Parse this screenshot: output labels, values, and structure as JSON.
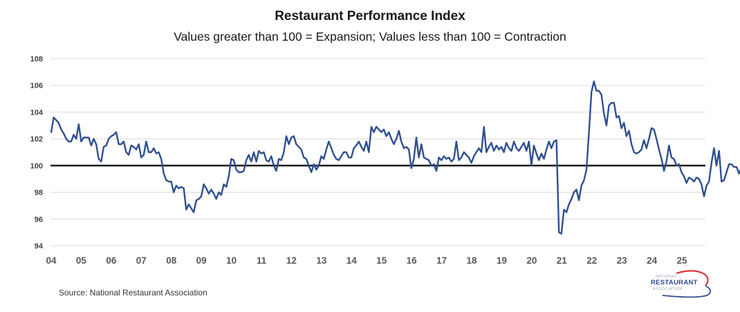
{
  "chart_data": {
    "type": "line",
    "title": "Restaurant Performance Index",
    "subtitle": "Values greater than 100 = Expansion; Values less than 100 = Contraction",
    "xlabel": "",
    "ylabel": "",
    "ylim": [
      94,
      108
    ],
    "yticks": [
      "108",
      "106",
      "104",
      "102",
      "100",
      "98",
      "96",
      "94"
    ],
    "ytick_values": [
      108,
      106,
      104,
      102,
      100,
      98,
      96,
      94
    ],
    "xticks": [
      "04",
      "05",
      "06",
      "07",
      "08",
      "09",
      "10",
      "11",
      "12",
      "13",
      "14",
      "15",
      "16",
      "17",
      "18",
      "19",
      "20",
      "21",
      "22",
      "23",
      "24",
      "25"
    ],
    "grid": true,
    "reference_line": 100,
    "legend": "none",
    "x_start": "2004-01",
    "frequency": "monthly",
    "series": [
      {
        "name": "Restaurant Performance Index",
        "color": "#2f4f8f",
        "values": [
          102.5,
          103.6,
          103.4,
          103.2,
          102.7,
          102.4,
          102.0,
          101.8,
          101.8,
          102.3,
          102.0,
          103.1,
          101.8,
          102.1,
          102.1,
          102.1,
          101.5,
          102.0,
          101.6,
          100.5,
          100.3,
          101.4,
          101.5,
          102.0,
          102.2,
          102.3,
          102.5,
          101.6,
          101.6,
          101.8,
          101.0,
          100.8,
          101.5,
          101.4,
          101.2,
          101.6,
          100.6,
          100.8,
          101.8,
          101.0,
          101.0,
          101.3,
          100.9,
          101.0,
          100.5,
          99.4,
          98.9,
          98.8,
          98.8,
          98.0,
          98.5,
          98.3,
          98.4,
          98.3,
          96.7,
          97.1,
          96.8,
          96.5,
          97.4,
          97.5,
          97.7,
          98.6,
          98.3,
          97.9,
          98.2,
          97.9,
          97.5,
          98.0,
          97.8,
          98.6,
          98.4,
          99.2,
          100.5,
          100.4,
          99.7,
          99.5,
          99.5,
          99.6,
          100.4,
          100.8,
          100.3,
          101.0,
          100.3,
          101.1,
          100.9,
          101.0,
          100.4,
          100.3,
          100.7,
          100.0,
          99.6,
          100.5,
          100.4,
          101.0,
          102.2,
          101.6,
          102.1,
          102.2,
          101.6,
          101.4,
          101.2,
          100.6,
          100.5,
          100.0,
          99.5,
          100.1,
          99.7,
          100.0,
          100.7,
          100.5,
          101.2,
          101.8,
          101.3,
          100.8,
          100.5,
          100.4,
          100.7,
          101.0,
          101.0,
          100.6,
          100.6,
          101.3,
          101.5,
          101.8,
          101.4,
          101.1,
          101.8,
          101.0,
          102.9,
          102.5,
          102.9,
          102.7,
          102.5,
          102.7,
          102.2,
          102.5,
          102.0,
          101.6,
          102.0,
          102.6,
          101.8,
          101.3,
          101.4,
          101.2,
          99.8,
          100.5,
          102.1,
          100.6,
          101.6,
          100.6,
          100.5,
          100.4,
          100.0,
          100.1,
          99.6,
          100.6,
          100.4,
          100.7,
          100.5,
          100.6,
          100.3,
          100.5,
          101.8,
          100.4,
          100.6,
          101.0,
          100.8,
          100.6,
          100.2,
          100.7,
          101.0,
          101.3,
          101.0,
          102.9,
          101.0,
          101.4,
          101.7,
          101.1,
          101.5,
          101.2,
          101.4,
          101.0,
          101.7,
          101.3,
          101.1,
          101.8,
          101.3,
          101.1,
          101.4,
          101.7,
          101.1,
          101.8,
          100.0,
          101.5,
          100.9,
          100.4,
          100.9,
          100.5,
          101.2,
          101.8,
          101.3,
          101.8,
          101.9,
          95.0,
          94.9,
          96.7,
          96.5,
          97.1,
          97.5,
          98.0,
          98.2,
          97.4,
          98.5,
          98.9,
          99.7,
          102.5,
          105.5,
          106.3,
          105.6,
          105.6,
          105.3,
          103.9,
          103.0,
          104.5,
          104.7,
          104.7,
          103.6,
          103.7,
          102.8,
          103.2,
          102.2,
          102.6,
          101.6,
          101.0,
          100.9,
          101.0,
          101.2,
          101.9,
          101.3,
          102.0,
          102.8,
          102.7,
          102.0,
          101.2,
          100.5,
          99.6,
          100.3,
          101.5,
          100.6,
          100.5,
          100.0,
          100.1,
          99.5,
          99.2,
          98.7,
          99.1,
          99.0,
          98.8,
          99.1,
          99.0,
          98.6,
          97.7,
          98.5,
          98.8,
          100.2,
          101.3,
          100.0,
          101.1,
          98.8,
          98.9,
          99.5,
          100.1,
          100.1,
          99.9,
          99.9,
          99.4,
          99.9
        ]
      }
    ]
  },
  "footer": {
    "source": "Source: National Restaurant Association",
    "logo_line1": "NATIONAL",
    "logo_line2": "RESTAURANT",
    "logo_line3": "ASSOCIATION"
  }
}
